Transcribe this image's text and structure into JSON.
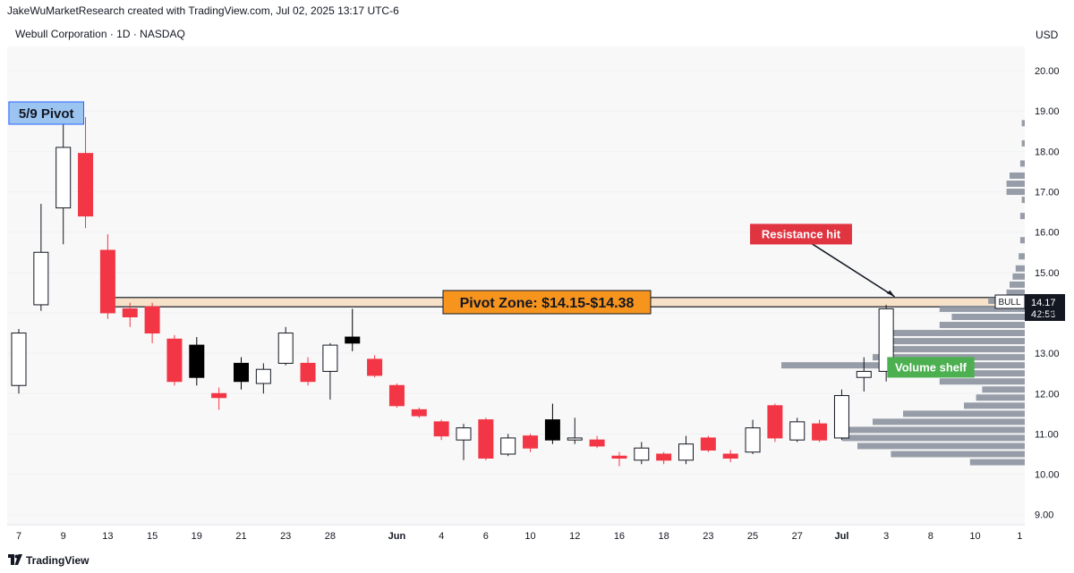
{
  "header": {
    "attribution": "JakeWuMarketResearch created with TradingView.com, Jul 02, 2025 13:17 UTC-6",
    "symbol": "Webull Corporation · 1D · NASDAQ",
    "currency": "USD"
  },
  "footer": {
    "brand": "TradingView"
  },
  "colors": {
    "up_candle_fill": "#ffffff",
    "down_candle": "#f23645",
    "black_candle": "#000000",
    "pivot_zone_fill": "#f7e2c9",
    "pivot_label_bg": "#f7941d",
    "pivot_label_fg": "#131722",
    "resistance_label_bg": "#e03440",
    "volume_shelf_bg": "#4caf50",
    "pivot_59_bg": "#9bc4f0",
    "volume_profile": "#8c929e",
    "plot_bg": "#f8f8f8"
  },
  "chart_data": {
    "type": "candlestick",
    "title": "Webull Corporation · 1D · NASDAQ",
    "ylim": [
      8.75,
      20.6
    ],
    "y_ticks": [
      9,
      10,
      11,
      12,
      13,
      14,
      15,
      16,
      17,
      18,
      19,
      20
    ],
    "x_tick_labels": [
      {
        "label": "7",
        "i": 0
      },
      {
        "label": "9",
        "i": 2
      },
      {
        "label": "13",
        "i": 4
      },
      {
        "label": "15",
        "i": 6
      },
      {
        "label": "19",
        "i": 8
      },
      {
        "label": "21",
        "i": 10
      },
      {
        "label": "23",
        "i": 12
      },
      {
        "label": "28",
        "i": 14
      },
      {
        "label": "Jun",
        "i": 17,
        "bold": true
      },
      {
        "label": "4",
        "i": 19
      },
      {
        "label": "6",
        "i": 21
      },
      {
        "label": "10",
        "i": 23
      },
      {
        "label": "12",
        "i": 25
      },
      {
        "label": "16",
        "i": 27
      },
      {
        "label": "18",
        "i": 29
      },
      {
        "label": "23",
        "i": 31
      },
      {
        "label": "25",
        "i": 33
      },
      {
        "label": "27",
        "i": 35
      },
      {
        "label": "Jul",
        "i": 37,
        "bold": true
      },
      {
        "label": "3",
        "i": 39
      },
      {
        "label": "8",
        "i": 41
      },
      {
        "label": "10",
        "i": 43
      },
      {
        "label": "1",
        "i": 45
      }
    ],
    "candles": [
      {
        "o": 12.2,
        "h": 13.6,
        "l": 12.0,
        "c": 13.5,
        "style": "up"
      },
      {
        "o": 14.2,
        "h": 16.7,
        "l": 14.05,
        "c": 15.5,
        "style": "up"
      },
      {
        "o": 16.6,
        "h": 18.7,
        "l": 15.7,
        "c": 18.1,
        "style": "up"
      },
      {
        "o": 17.95,
        "h": 18.85,
        "l": 16.1,
        "c": 16.4,
        "style": "down"
      },
      {
        "o": 15.55,
        "h": 15.95,
        "l": 13.85,
        "c": 14.0,
        "style": "down"
      },
      {
        "o": 14.1,
        "h": 14.25,
        "l": 13.65,
        "c": 13.9,
        "style": "down"
      },
      {
        "o": 14.15,
        "h": 14.25,
        "l": 13.25,
        "c": 13.5,
        "style": "down"
      },
      {
        "o": 13.35,
        "h": 13.45,
        "l": 12.2,
        "c": 12.3,
        "style": "down"
      },
      {
        "o": 13.2,
        "h": 13.4,
        "l": 12.2,
        "c": 12.4,
        "style": "black"
      },
      {
        "o": 12.0,
        "h": 12.15,
        "l": 11.6,
        "c": 11.9,
        "style": "down"
      },
      {
        "o": 12.3,
        "h": 12.9,
        "l": 12.1,
        "c": 12.75,
        "style": "black"
      },
      {
        "o": 12.25,
        "h": 12.75,
        "l": 12.0,
        "c": 12.6,
        "style": "up"
      },
      {
        "o": 12.75,
        "h": 13.65,
        "l": 12.7,
        "c": 13.5,
        "style": "up"
      },
      {
        "o": 12.75,
        "h": 12.9,
        "l": 12.2,
        "c": 12.3,
        "style": "down"
      },
      {
        "o": 12.55,
        "h": 13.25,
        "l": 11.85,
        "c": 13.2,
        "style": "up"
      },
      {
        "o": 13.25,
        "h": 14.1,
        "l": 13.05,
        "c": 13.4,
        "style": "black"
      },
      {
        "o": 12.85,
        "h": 12.95,
        "l": 12.4,
        "c": 12.45,
        "style": "down"
      },
      {
        "o": 12.2,
        "h": 12.25,
        "l": 11.65,
        "c": 11.7,
        "style": "down"
      },
      {
        "o": 11.6,
        "h": 11.65,
        "l": 11.4,
        "c": 11.45,
        "style": "down"
      },
      {
        "o": 11.3,
        "h": 11.35,
        "l": 10.85,
        "c": 10.95,
        "style": "down"
      },
      {
        "o": 10.85,
        "h": 11.25,
        "l": 10.35,
        "c": 11.15,
        "style": "up"
      },
      {
        "o": 11.35,
        "h": 11.4,
        "l": 10.35,
        "c": 10.4,
        "style": "down"
      },
      {
        "o": 10.5,
        "h": 11.0,
        "l": 10.45,
        "c": 10.9,
        "style": "up"
      },
      {
        "o": 10.95,
        "h": 11.0,
        "l": 10.55,
        "c": 10.65,
        "style": "down"
      },
      {
        "o": 10.85,
        "h": 11.75,
        "l": 10.75,
        "c": 11.35,
        "style": "black"
      },
      {
        "o": 10.85,
        "h": 11.4,
        "l": 10.75,
        "c": 10.9,
        "style": "up"
      },
      {
        "o": 10.85,
        "h": 10.95,
        "l": 10.65,
        "c": 10.7,
        "style": "down"
      },
      {
        "o": 10.45,
        "h": 10.55,
        "l": 10.2,
        "c": 10.4,
        "style": "down"
      },
      {
        "o": 10.35,
        "h": 10.8,
        "l": 10.25,
        "c": 10.65,
        "style": "up"
      },
      {
        "o": 10.5,
        "h": 10.55,
        "l": 10.25,
        "c": 10.35,
        "style": "down"
      },
      {
        "o": 10.35,
        "h": 10.95,
        "l": 10.25,
        "c": 10.75,
        "style": "up"
      },
      {
        "o": 10.9,
        "h": 10.95,
        "l": 10.55,
        "c": 10.6,
        "style": "down"
      },
      {
        "o": 10.5,
        "h": 10.6,
        "l": 10.3,
        "c": 10.4,
        "style": "down"
      },
      {
        "o": 10.55,
        "h": 11.35,
        "l": 10.5,
        "c": 11.15,
        "style": "up"
      },
      {
        "o": 11.7,
        "h": 11.75,
        "l": 10.8,
        "c": 10.9,
        "style": "down"
      },
      {
        "o": 10.85,
        "h": 11.4,
        "l": 10.8,
        "c": 11.3,
        "style": "up"
      },
      {
        "o": 11.25,
        "h": 11.35,
        "l": 10.8,
        "c": 10.85,
        "style": "down"
      },
      {
        "o": 10.9,
        "h": 12.1,
        "l": 10.85,
        "c": 11.95,
        "style": "up"
      },
      {
        "o": 12.4,
        "h": 12.9,
        "l": 12.05,
        "c": 12.55,
        "style": "up"
      },
      {
        "o": 12.55,
        "h": 14.2,
        "l": 12.3,
        "c": 14.1,
        "style": "up"
      }
    ],
    "pivot_zone": {
      "low": 14.15,
      "high": 14.38,
      "from_i": 4,
      "to_i": 45.5
    },
    "volume_profile": [
      {
        "price": 10.3,
        "size": 0.18
      },
      {
        "price": 10.5,
        "size": 0.44
      },
      {
        "price": 10.7,
        "size": 0.55
      },
      {
        "price": 10.9,
        "size": 0.6
      },
      {
        "price": 11.1,
        "size": 0.6
      },
      {
        "price": 11.3,
        "size": 0.5
      },
      {
        "price": 11.5,
        "size": 0.4
      },
      {
        "price": 11.7,
        "size": 0.2
      },
      {
        "price": 11.9,
        "size": 0.16
      },
      {
        "price": 12.1,
        "size": 0.14
      },
      {
        "price": 12.3,
        "size": 0.28
      },
      {
        "price": 12.5,
        "size": 0.4
      },
      {
        "price": 12.7,
        "size": 0.8
      },
      {
        "price": 12.9,
        "size": 0.5
      },
      {
        "price": 13.1,
        "size": 0.47
      },
      {
        "price": 13.3,
        "size": 0.46
      },
      {
        "price": 13.5,
        "size": 0.44
      },
      {
        "price": 13.7,
        "size": 0.28
      },
      {
        "price": 13.9,
        "size": 0.24
      },
      {
        "price": 14.1,
        "size": 0.28
      },
      {
        "price": 14.3,
        "size": 0.12
      },
      {
        "price": 14.5,
        "size": 0.06
      },
      {
        "price": 14.7,
        "size": 0.05
      },
      {
        "price": 14.9,
        "size": 0.04
      },
      {
        "price": 15.1,
        "size": 0.03
      },
      {
        "price": 15.4,
        "size": 0.02
      },
      {
        "price": 15.8,
        "size": 0.015
      },
      {
        "price": 16.4,
        "size": 0.015
      },
      {
        "price": 16.8,
        "size": 0.01
      },
      {
        "price": 17.0,
        "size": 0.06
      },
      {
        "price": 17.2,
        "size": 0.06
      },
      {
        "price": 17.4,
        "size": 0.05
      },
      {
        "price": 17.7,
        "size": 0.015
      },
      {
        "price": 18.2,
        "size": 0.01
      },
      {
        "price": 18.7,
        "size": 0.01
      }
    ],
    "annotations": {
      "pivot_59": {
        "text": "5/9 Pivot",
        "i": 2,
        "price": 18.95
      },
      "pivot_zone_label": {
        "text": "Pivot Zone: $14.15-$14.38"
      },
      "resistance": {
        "text": "Resistance hit",
        "i": 35.5,
        "price": 15.95,
        "arrow_to_i": 39.5,
        "arrow_to_price": 14.4
      },
      "volume_shelf": {
        "text": "Volume shelf",
        "i": 39.5,
        "price": 12.65
      }
    },
    "price_markers": {
      "bull_label": "BULL",
      "last_price": "14.17",
      "countdown": "42:53"
    }
  }
}
